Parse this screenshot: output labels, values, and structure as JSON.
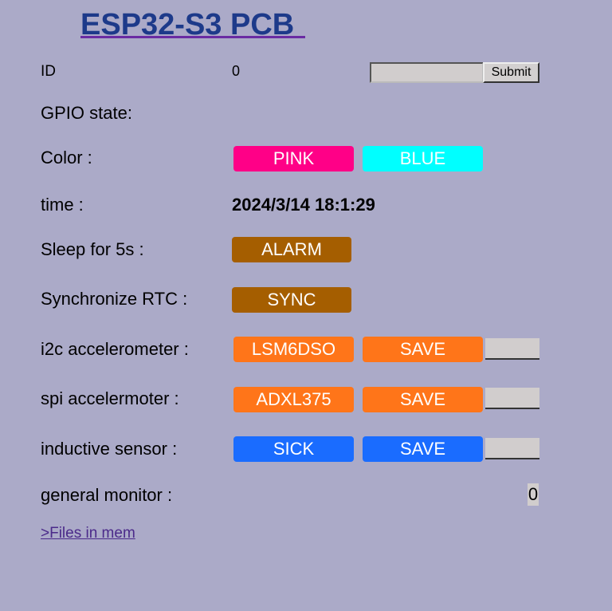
{
  "page": {
    "title": "ESP32-S3 PCB"
  },
  "id_row": {
    "label": "ID",
    "value": "0",
    "input_value": "",
    "submit_label": "Submit"
  },
  "gpio": {
    "label": "GPIO state:"
  },
  "color_row": {
    "label": "Color :",
    "pink_label": "PINK",
    "blue_label": "BLUE"
  },
  "time_row": {
    "label": "time :",
    "value": "2024/3/14 18:1:29"
  },
  "sleep_row": {
    "label": "Sleep for 5s :",
    "button_label": "ALARM"
  },
  "rtc_row": {
    "label": "Synchronize RTC :",
    "button_label": "SYNC"
  },
  "i2c_row": {
    "label": "i2c accelerometer :",
    "sensor_label": "LSM6DSO",
    "save_label": "SAVE",
    "field_value": ""
  },
  "spi_row": {
    "label": "spi accelermoter :",
    "sensor_label": "ADXL375",
    "save_label": "SAVE",
    "field_value": ""
  },
  "inductive_row": {
    "label": "inductive sensor :",
    "sensor_label": "SICK",
    "save_label": "SAVE",
    "field_value": ""
  },
  "monitor_row": {
    "label": "general monitor :",
    "value": "0"
  },
  "files_link": {
    "label": ">Files in mem"
  },
  "colors": {
    "background": "#abaac8",
    "title": "#1d3a8a",
    "pink": "#ff0087",
    "cyan": "#00ffff",
    "brown": "#a55e00",
    "orange": "#ff7519",
    "blue": "#1a6cff",
    "link": "#4b2a8a"
  }
}
